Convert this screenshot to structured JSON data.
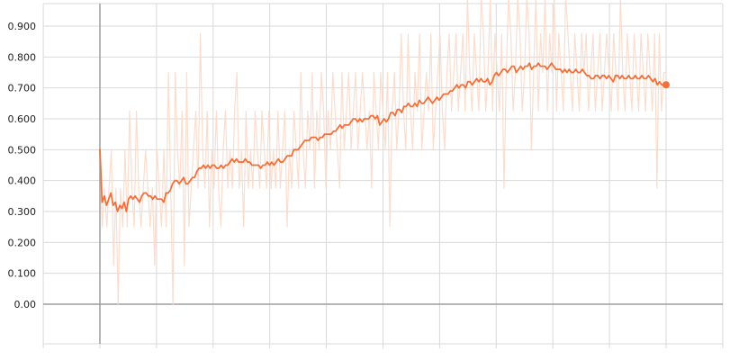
{
  "chart_data": {
    "type": "line",
    "title": "",
    "xlabel": "",
    "ylabel": "",
    "ylim": [
      -0.07,
      0.98
    ],
    "y_ticks": [
      {
        "value": 0.0,
        "label": "0.00"
      },
      {
        "value": 0.1,
        "label": "0.100"
      },
      {
        "value": 0.2,
        "label": "0.200"
      },
      {
        "value": 0.3,
        "label": "0.300"
      },
      {
        "value": 0.4,
        "label": "0.400"
      },
      {
        "value": 0.5,
        "label": "0.500"
      },
      {
        "value": 0.6,
        "label": "0.600"
      },
      {
        "value": 0.7,
        "label": "0.700"
      },
      {
        "value": 0.8,
        "label": "0.800"
      },
      {
        "value": 0.9,
        "label": "0.900"
      }
    ],
    "grid": true,
    "legend": "none",
    "colors": {
      "smoothed": "#f4703a",
      "raw": "#fbd9ca",
      "grid": "#d9d9d9",
      "axis": "#9e9e9e"
    },
    "series": [
      {
        "role": "raw",
        "values": [
          0.5,
          0.25,
          0.375,
          0.25,
          0.375,
          0.5,
          0.125,
          0.375,
          0.0,
          0.375,
          0.25,
          0.5,
          0.25,
          0.625,
          0.375,
          0.25,
          0.625,
          0.375,
          0.25,
          0.375,
          0.5,
          0.375,
          0.25,
          0.375,
          0.125,
          0.5,
          0.375,
          0.25,
          0.5,
          0.25,
          0.75,
          0.375,
          0.0,
          0.75,
          0.5,
          0.375,
          0.625,
          0.125,
          0.75,
          0.25,
          0.375,
          0.5,
          0.625,
          0.375,
          0.875,
          0.5,
          0.375,
          0.625,
          0.25,
          0.5,
          0.375,
          0.625,
          0.375,
          0.25,
          0.5,
          0.625,
          0.375,
          0.5,
          0.375,
          0.625,
          0.75,
          0.375,
          0.5,
          0.25,
          0.625,
          0.375,
          0.5,
          0.375,
          0.625,
          0.5,
          0.375,
          0.625,
          0.5,
          0.375,
          0.625,
          0.375,
          0.5,
          0.375,
          0.625,
          0.375,
          0.5,
          0.625,
          0.25,
          0.5,
          0.375,
          0.625,
          0.5,
          0.375,
          0.75,
          0.5,
          0.375,
          0.625,
          0.5,
          0.75,
          0.375,
          0.625,
          0.5,
          0.75,
          0.625,
          0.375,
          0.625,
          0.5,
          0.75,
          0.625,
          0.5,
          0.375,
          0.75,
          0.5,
          0.625,
          0.75,
          0.5,
          0.625,
          0.75,
          0.5,
          0.625,
          0.75,
          0.625,
          0.5,
          0.625,
          0.375,
          0.75,
          0.625,
          0.5,
          0.75,
          0.625,
          0.5,
          0.75,
          0.25,
          0.625,
          0.75,
          0.5,
          0.625,
          0.875,
          0.625,
          0.5,
          0.875,
          0.625,
          0.5,
          0.75,
          0.625,
          0.875,
          0.5,
          0.625,
          0.75,
          0.625,
          0.875,
          0.5,
          0.625,
          0.75,
          0.875,
          0.625,
          0.5,
          0.75,
          0.875,
          0.625,
          0.75,
          0.875,
          0.625,
          0.75,
          0.875,
          0.625,
          1.0,
          0.75,
          0.625,
          0.875,
          0.75,
          0.625,
          1.0,
          0.875,
          0.625,
          0.75,
          1.0,
          0.625,
          0.875,
          0.75,
          0.625,
          0.875,
          0.375,
          0.75,
          1.0,
          0.875,
          0.625,
          0.75,
          1.0,
          0.875,
          0.625,
          0.75,
          1.0,
          0.875,
          0.5,
          0.75,
          1.0,
          0.625,
          0.875,
          0.75,
          1.0,
          0.625,
          0.875,
          0.75,
          1.0,
          0.625,
          0.875,
          0.75,
          0.625,
          1.0,
          0.875,
          0.75,
          0.625,
          0.875,
          0.75,
          0.625,
          0.875,
          0.75,
          0.875,
          0.625,
          0.75,
          0.875,
          0.625,
          0.75,
          0.875,
          0.625,
          0.75,
          0.875,
          0.75,
          0.625,
          0.875,
          0.75,
          0.625,
          1.0,
          0.75,
          0.625,
          0.875,
          0.75,
          0.625,
          0.875,
          0.75,
          0.625,
          0.875,
          0.75,
          0.625,
          0.875,
          0.75,
          0.625,
          0.875,
          0.375,
          0.875,
          0.625,
          0.75,
          0.75
        ]
      },
      {
        "role": "smoothed",
        "values": [
          0.5,
          0.33,
          0.35,
          0.32,
          0.34,
          0.36,
          0.32,
          0.33,
          0.3,
          0.32,
          0.31,
          0.33,
          0.3,
          0.34,
          0.35,
          0.34,
          0.35,
          0.34,
          0.33,
          0.35,
          0.36,
          0.36,
          0.35,
          0.35,
          0.34,
          0.35,
          0.34,
          0.34,
          0.34,
          0.33,
          0.36,
          0.36,
          0.37,
          0.39,
          0.4,
          0.4,
          0.39,
          0.4,
          0.41,
          0.39,
          0.39,
          0.4,
          0.41,
          0.41,
          0.43,
          0.44,
          0.44,
          0.45,
          0.44,
          0.45,
          0.44,
          0.45,
          0.45,
          0.44,
          0.44,
          0.45,
          0.44,
          0.45,
          0.45,
          0.46,
          0.47,
          0.46,
          0.47,
          0.46,
          0.46,
          0.46,
          0.47,
          0.46,
          0.46,
          0.45,
          0.45,
          0.45,
          0.45,
          0.44,
          0.45,
          0.45,
          0.46,
          0.45,
          0.46,
          0.45,
          0.46,
          0.47,
          0.46,
          0.46,
          0.47,
          0.48,
          0.48,
          0.48,
          0.5,
          0.5,
          0.5,
          0.51,
          0.52,
          0.53,
          0.53,
          0.53,
          0.54,
          0.54,
          0.54,
          0.53,
          0.54,
          0.54,
          0.55,
          0.55,
          0.55,
          0.55,
          0.56,
          0.56,
          0.57,
          0.58,
          0.57,
          0.58,
          0.58,
          0.58,
          0.59,
          0.6,
          0.6,
          0.59,
          0.6,
          0.59,
          0.6,
          0.6,
          0.6,
          0.61,
          0.61,
          0.6,
          0.61,
          0.58,
          0.59,
          0.6,
          0.59,
          0.6,
          0.62,
          0.62,
          0.61,
          0.63,
          0.63,
          0.62,
          0.64,
          0.64,
          0.65,
          0.64,
          0.64,
          0.65,
          0.64,
          0.66,
          0.65,
          0.65,
          0.66,
          0.67,
          0.66,
          0.65,
          0.66,
          0.67,
          0.66,
          0.67,
          0.68,
          0.68,
          0.68,
          0.69,
          0.69,
          0.7,
          0.71,
          0.7,
          0.71,
          0.71,
          0.7,
          0.72,
          0.72,
          0.71,
          0.72,
          0.73,
          0.72,
          0.73,
          0.72,
          0.72,
          0.73,
          0.71,
          0.72,
          0.74,
          0.75,
          0.74,
          0.75,
          0.76,
          0.76,
          0.75,
          0.76,
          0.77,
          0.77,
          0.75,
          0.76,
          0.77,
          0.76,
          0.77,
          0.77,
          0.78,
          0.76,
          0.77,
          0.77,
          0.78,
          0.77,
          0.77,
          0.77,
          0.76,
          0.77,
          0.78,
          0.77,
          0.76,
          0.76,
          0.76,
          0.75,
          0.76,
          0.75,
          0.76,
          0.75,
          0.75,
          0.76,
          0.75,
          0.75,
          0.76,
          0.75,
          0.74,
          0.74,
          0.73,
          0.73,
          0.74,
          0.74,
          0.73,
          0.74,
          0.74,
          0.73,
          0.74,
          0.73,
          0.72,
          0.74,
          0.74,
          0.73,
          0.74,
          0.73,
          0.73,
          0.74,
          0.73,
          0.73,
          0.74,
          0.73,
          0.73,
          0.74,
          0.73,
          0.73,
          0.74,
          0.73,
          0.72,
          0.73,
          0.71,
          0.72,
          0.71,
          0.71,
          0.71
        ]
      }
    ]
  }
}
